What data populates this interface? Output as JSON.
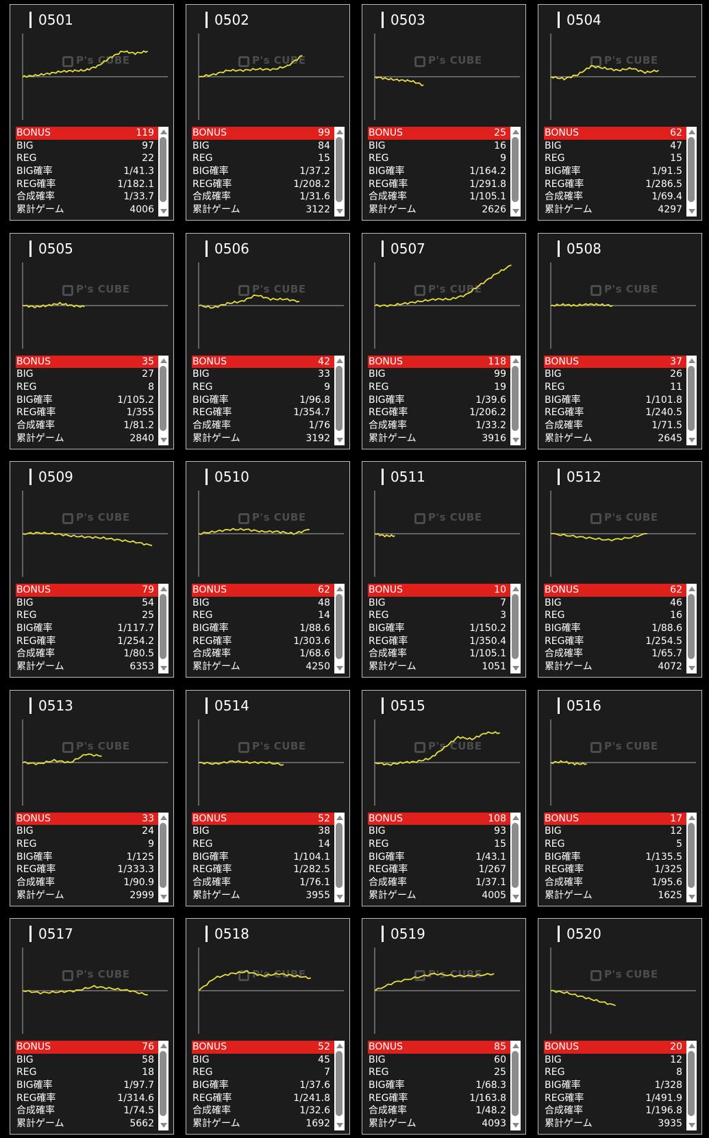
{
  "labels": {
    "bonus": "BONUS",
    "big": "BIG",
    "reg": "REG",
    "big_rate": "BIG確率",
    "reg_rate": "REG確率",
    "total_rate": "合成確率",
    "games": "累計ゲーム"
  },
  "watermark": "P's CUBE",
  "colors": {
    "bonus_row": "#e0201c",
    "line": "#e8e040",
    "card_bg": "#1c1c1c"
  },
  "machines": [
    {
      "id": "0501",
      "bonus": "119",
      "big": "97",
      "reg": "22",
      "big_rate": "1/41.3",
      "reg_rate": "1/182.1",
      "total_rate": "1/33.7",
      "games": "4006",
      "graph": {
        "end": 0.87,
        "values": [
          0,
          3,
          7,
          12,
          14,
          15,
          25,
          45,
          60,
          55,
          60
        ]
      }
    },
    {
      "id": "0502",
      "bonus": "99",
      "big": "84",
      "reg": "15",
      "big_rate": "1/37.2",
      "reg_rate": "1/208.2",
      "total_rate": "1/31.6",
      "games": "3122",
      "graph": {
        "end": 0.72,
        "values": [
          0,
          5,
          15,
          15,
          18,
          17,
          25,
          50
        ]
      }
    },
    {
      "id": "0503",
      "bonus": "25",
      "big": "16",
      "reg": "9",
      "big_rate": "1/164.2",
      "reg_rate": "1/291.8",
      "total_rate": "1/105.1",
      "games": "2626",
      "graph": {
        "end": 0.34,
        "values": [
          0,
          -5,
          -8,
          -10,
          -20
        ]
      }
    },
    {
      "id": "0504",
      "bonus": "62",
      "big": "47",
      "reg": "15",
      "big_rate": "1/91.5",
      "reg_rate": "1/286.5",
      "total_rate": "1/69.4",
      "games": "4297",
      "graph": {
        "end": 0.75,
        "values": [
          0,
          -5,
          5,
          25,
          20,
          15,
          20,
          10,
          15
        ]
      }
    },
    {
      "id": "0505",
      "bonus": "35",
      "big": "27",
      "reg": "8",
      "big_rate": "1/105.2",
      "reg_rate": "1/355",
      "total_rate": "1/81.2",
      "games": "2840",
      "graph": {
        "end": 0.43,
        "values": [
          0,
          -3,
          0,
          5,
          0,
          -3
        ]
      }
    },
    {
      "id": "0506",
      "bonus": "42",
      "big": "33",
      "reg": "9",
      "big_rate": "1/96.8",
      "reg_rate": "1/354.7",
      "total_rate": "1/76",
      "games": "3192",
      "graph": {
        "end": 0.7,
        "values": [
          0,
          -5,
          5,
          10,
          25,
          15,
          15,
          10
        ]
      }
    },
    {
      "id": "0507",
      "bonus": "118",
      "big": "99",
      "reg": "19",
      "big_rate": "1/39.6",
      "reg_rate": "1/206.2",
      "total_rate": "1/33.2",
      "games": "3916",
      "graph": {
        "end": 0.95,
        "values": [
          0,
          0,
          5,
          10,
          15,
          15,
          25,
          50,
          75,
          95
        ]
      }
    },
    {
      "id": "0508",
      "bonus": "37",
      "big": "26",
      "reg": "11",
      "big_rate": "1/101.8",
      "reg_rate": "1/240.5",
      "total_rate": "1/71.5",
      "games": "2645",
      "graph": {
        "end": 0.43,
        "values": [
          0,
          2,
          0,
          3,
          2,
          0
        ]
      }
    },
    {
      "id": "0509",
      "bonus": "79",
      "big": "54",
      "reg": "25",
      "big_rate": "1/117.7",
      "reg_rate": "1/254.2",
      "total_rate": "1/80.5",
      "games": "6353",
      "graph": {
        "end": 0.9,
        "values": [
          0,
          2,
          0,
          -5,
          -8,
          -10,
          -15,
          -20,
          -28
        ]
      }
    },
    {
      "id": "0510",
      "bonus": "62",
      "big": "48",
      "reg": "14",
      "big_rate": "1/88.6",
      "reg_rate": "1/303.6",
      "total_rate": "1/68.6",
      "games": "4250",
      "graph": {
        "end": 0.77,
        "values": [
          0,
          5,
          10,
          10,
          5,
          5,
          0,
          10
        ]
      }
    },
    {
      "id": "0511",
      "bonus": "10",
      "big": "7",
      "reg": "3",
      "big_rate": "1/150.2",
      "reg_rate": "1/350.4",
      "total_rate": "1/105.1",
      "games": "1051",
      "graph": {
        "end": 0.14,
        "values": [
          0,
          -5,
          -5
        ]
      }
    },
    {
      "id": "0512",
      "bonus": "62",
      "big": "46",
      "reg": "16",
      "big_rate": "1/88.6",
      "reg_rate": "1/254.5",
      "total_rate": "1/65.7",
      "games": "4072",
      "graph": {
        "end": 0.67,
        "values": [
          0,
          -5,
          -10,
          -15,
          -10,
          0
        ]
      }
    },
    {
      "id": "0513",
      "bonus": "33",
      "big": "24",
      "reg": "9",
      "big_rate": "1/125",
      "reg_rate": "1/333.3",
      "total_rate": "1/90.9",
      "games": "2999",
      "graph": {
        "end": 0.55,
        "values": [
          0,
          -3,
          5,
          0,
          20,
          15
        ]
      }
    },
    {
      "id": "0514",
      "bonus": "52",
      "big": "38",
      "reg": "14",
      "big_rate": "1/104.1",
      "reg_rate": "1/282.5",
      "total_rate": "1/76.1",
      "games": "3955",
      "graph": {
        "end": 0.59,
        "values": [
          0,
          -3,
          3,
          0,
          0,
          -5
        ]
      }
    },
    {
      "id": "0515",
      "bonus": "108",
      "big": "93",
      "reg": "15",
      "big_rate": "1/43.1",
      "reg_rate": "1/267",
      "total_rate": "1/37.1",
      "games": "4005",
      "graph": {
        "end": 0.87,
        "values": [
          0,
          -5,
          0,
          2,
          10,
          35,
          60,
          55,
          70,
          70
        ]
      }
    },
    {
      "id": "0516",
      "bonus": "17",
      "big": "12",
      "reg": "5",
      "big_rate": "1/135.5",
      "reg_rate": "1/325",
      "total_rate": "1/95.6",
      "games": "1625",
      "graph": {
        "end": 0.25,
        "values": [
          0,
          2,
          -3,
          -3
        ]
      }
    },
    {
      "id": "0517",
      "bonus": "76",
      "big": "58",
      "reg": "18",
      "big_rate": "1/97.7",
      "reg_rate": "1/314.6",
      "total_rate": "1/74.5",
      "games": "5662",
      "graph": {
        "end": 0.87,
        "values": [
          0,
          -5,
          -3,
          0,
          10,
          5,
          0,
          -10
        ]
      }
    },
    {
      "id": "0518",
      "bonus": "52",
      "big": "45",
      "reg": "7",
      "big_rate": "1/37.6",
      "reg_rate": "1/241.8",
      "total_rate": "1/32.6",
      "games": "1692",
      "graph": {
        "end": 0.78,
        "values": [
          0,
          30,
          40,
          45,
          35,
          40,
          35,
          30
        ]
      }
    },
    {
      "id": "0519",
      "bonus": "85",
      "big": "60",
      "reg": "25",
      "big_rate": "1/68.3",
      "reg_rate": "1/163.8",
      "total_rate": "1/48.2",
      "games": "4093",
      "graph": {
        "end": 0.83,
        "values": [
          0,
          20,
          30,
          40,
          35,
          35,
          40
        ]
      }
    },
    {
      "id": "0520",
      "bonus": "20",
      "big": "12",
      "reg": "8",
      "big_rate": "1/328",
      "reg_rate": "1/491.9",
      "total_rate": "1/196.8",
      "games": "3935",
      "graph": {
        "end": 0.45,
        "values": [
          0,
          -5,
          -15,
          -25,
          -35
        ]
      }
    }
  ]
}
